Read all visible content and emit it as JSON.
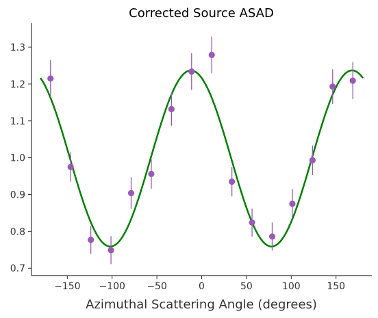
{
  "chart_data": {
    "type": "scatter",
    "title": "Corrected Source ASAD",
    "xlabel": "Azimuthal Scattering Angle (degrees)",
    "ylabel": "",
    "xlim": [
      -190,
      190
    ],
    "ylim": [
      0.68,
      1.365
    ],
    "x_ticks": [
      -150,
      -100,
      -50,
      0,
      50,
      100,
      150
    ],
    "y_ticks": [
      0.7,
      0.8,
      0.9,
      1.0,
      1.1,
      1.2,
      1.3
    ],
    "x_tick_labels": [
      "−150",
      "−100",
      "−50",
      "0",
      "50",
      "100",
      "150"
    ],
    "y_tick_labels": [
      "0.7",
      "0.8",
      "0.9",
      "1.0",
      "1.1",
      "1.2",
      "1.3"
    ],
    "grid": false,
    "series": [
      {
        "type": "scatter",
        "color": "#9b59b6",
        "points": [
          {
            "x": -168.75,
            "y": 1.215,
            "err": 0.05
          },
          {
            "x": -146.25,
            "y": 0.975,
            "err": 0.04
          },
          {
            "x": -123.75,
            "y": 0.777,
            "err": 0.038
          },
          {
            "x": -101.25,
            "y": 0.749,
            "err": 0.038
          },
          {
            "x": -78.75,
            "y": 0.904,
            "err": 0.043
          },
          {
            "x": -56.25,
            "y": 0.956,
            "err": 0.04
          },
          {
            "x": -33.75,
            "y": 1.132,
            "err": 0.045
          },
          {
            "x": -11.25,
            "y": 1.234,
            "err": 0.05
          },
          {
            "x": 11.25,
            "y": 1.279,
            "err": 0.05
          },
          {
            "x": 33.75,
            "y": 0.935,
            "err": 0.04
          },
          {
            "x": 56.25,
            "y": 0.824,
            "err": 0.038
          },
          {
            "x": 78.75,
            "y": 0.786,
            "err": 0.038
          },
          {
            "x": 101.25,
            "y": 0.875,
            "err": 0.04
          },
          {
            "x": 123.75,
            "y": 0.993,
            "err": 0.04
          },
          {
            "x": 146.25,
            "y": 1.193,
            "err": 0.047
          },
          {
            "x": 168.75,
            "y": 1.209,
            "err": 0.05
          }
        ]
      },
      {
        "type": "line",
        "color": "#008000",
        "model": {
          "form": "A + B*cos(2*(phi - phi0))",
          "A": 0.998,
          "B": 0.239,
          "phi0": -12
        },
        "x_range": [
          -180,
          180
        ]
      }
    ]
  }
}
